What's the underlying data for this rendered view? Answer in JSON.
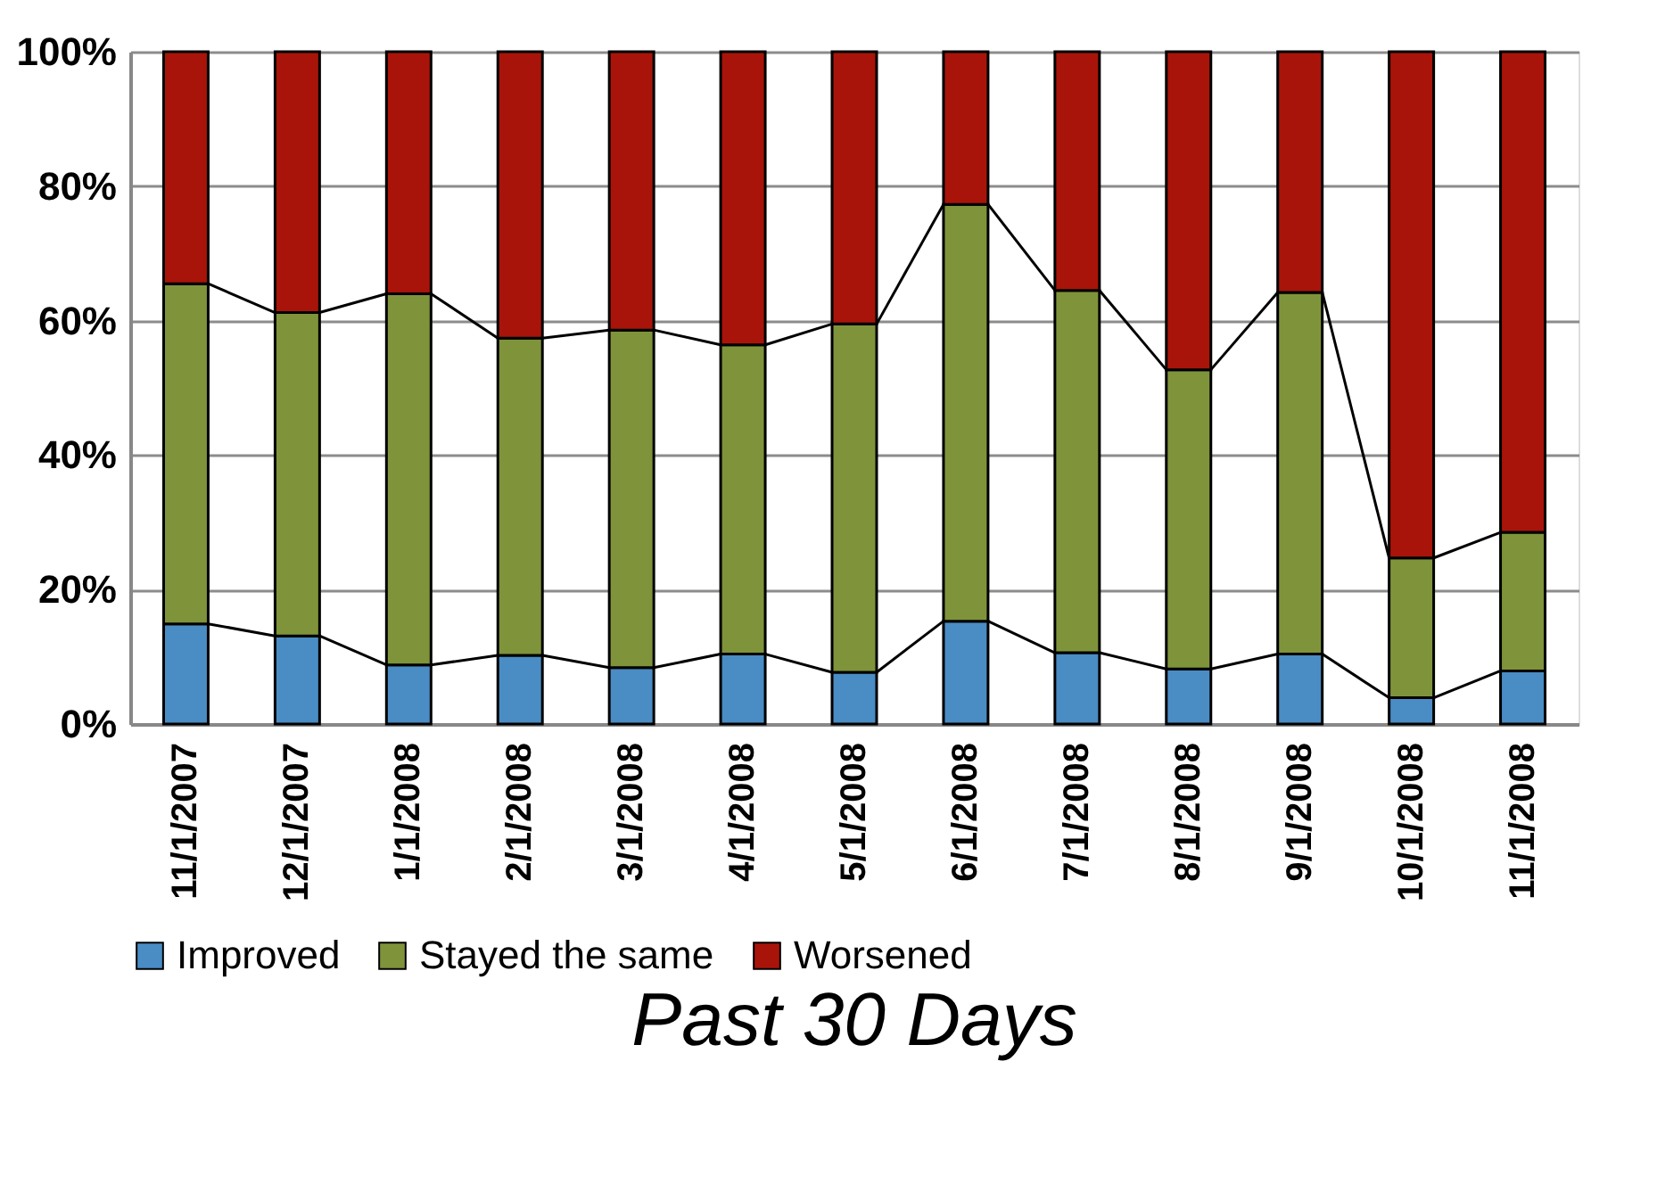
{
  "chart_data": {
    "type": "bar",
    "stacked": true,
    "title": "Past 30 Days",
    "categories": [
      "11/1/2007",
      "12/1/2007",
      "1/1/2008",
      "2/1/2008",
      "3/1/2008",
      "4/1/2008",
      "5/1/2008",
      "6/1/2008",
      "7/1/2008",
      "8/1/2008",
      "9/1/2008",
      "10/1/2008",
      "11/1/2008"
    ],
    "series": [
      {
        "name": "Improved",
        "color": "#4a8cc4",
        "values": [
          14.9,
          13.1,
          8.8,
          10.2,
          8.4,
          10.4,
          7.7,
          15.3,
          10.6,
          8.2,
          10.4,
          3.9,
          7.9
        ]
      },
      {
        "name": "Stayed the same",
        "color": "#7f933b",
        "values": [
          50.6,
          48.1,
          55.2,
          47.2,
          50.2,
          46.0,
          51.8,
          62.0,
          53.9,
          44.5,
          53.8,
          20.8,
          20.6
        ]
      },
      {
        "name": "Worsened",
        "color": "#a81409",
        "values": [
          34.5,
          38.8,
          36.0,
          42.6,
          41.4,
          43.6,
          40.5,
          22.7,
          35.5,
          47.3,
          35.8,
          75.3,
          71.5
        ]
      }
    ],
    "ylim": [
      0,
      100
    ],
    "yticks": [
      {
        "value": 0,
        "label": "0%"
      },
      {
        "value": 20,
        "label": "20%"
      },
      {
        "value": 40,
        "label": "40%"
      },
      {
        "value": 60,
        "label": "60%"
      },
      {
        "value": 80,
        "label": "80%"
      },
      {
        "value": 100,
        "label": "100%"
      }
    ],
    "grid": "y",
    "legend": "bottom"
  }
}
